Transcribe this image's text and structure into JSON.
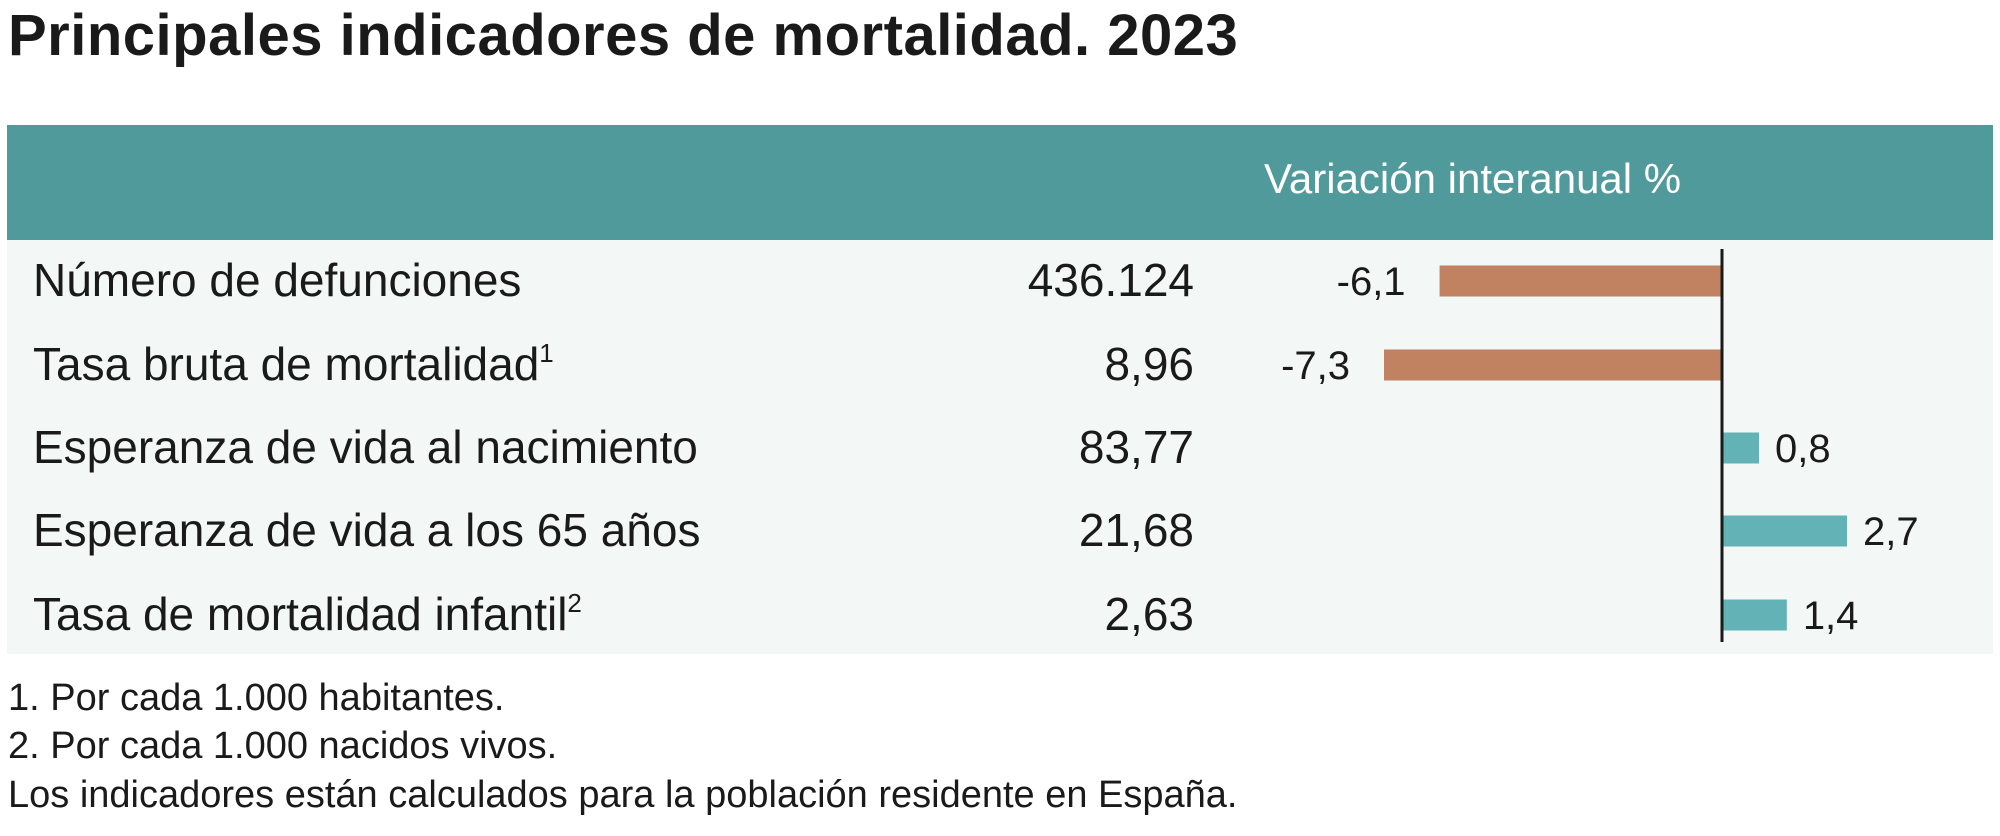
{
  "title": "Principales indicadores de mortalidad. 2023",
  "header": {
    "variation_label": "Variación interanual %"
  },
  "rows": [
    {
      "label": "Número de defunciones",
      "sup": "",
      "value": "436.124",
      "variation": "-6,1"
    },
    {
      "label": "Tasa bruta de mortalidad",
      "sup": "1",
      "value": "8,96",
      "variation": "-7,3"
    },
    {
      "label": "Esperanza de vida al nacimiento",
      "sup": "",
      "value": "83,77",
      "variation": "0,8"
    },
    {
      "label": "Esperanza de vida a los 65 años",
      "sup": "",
      "value": "21,68",
      "variation": "2,7"
    },
    {
      "label": "Tasa de mortalidad infantil",
      "sup": "2",
      "value": "2,63",
      "variation": "1,4"
    }
  ],
  "chart_data": {
    "type": "bar",
    "orientation": "horizontal",
    "categories": [
      "Número de defunciones",
      "Tasa bruta de mortalidad",
      "Esperanza de vida al nacimiento",
      "Esperanza de vida a los 65 años",
      "Tasa de mortalidad infantil"
    ],
    "values": [
      -6.1,
      -7.3,
      0.8,
      2.7,
      1.4
    ],
    "title": "Variación interanual %",
    "xlim": [
      -8,
      5
    ],
    "grid": false,
    "colors": {
      "negative": "#c08260",
      "positive": "#63b3b6",
      "axis": "#1a1a1a"
    }
  },
  "notes": [
    "1. Por cada 1.000 habitantes.",
    "2. Por cada 1.000 nacidos vivos.",
    "Los indicadores están calculados para la población residente en España."
  ],
  "colors": {
    "header": "#519a9c",
    "body": "#f3f7f6"
  }
}
